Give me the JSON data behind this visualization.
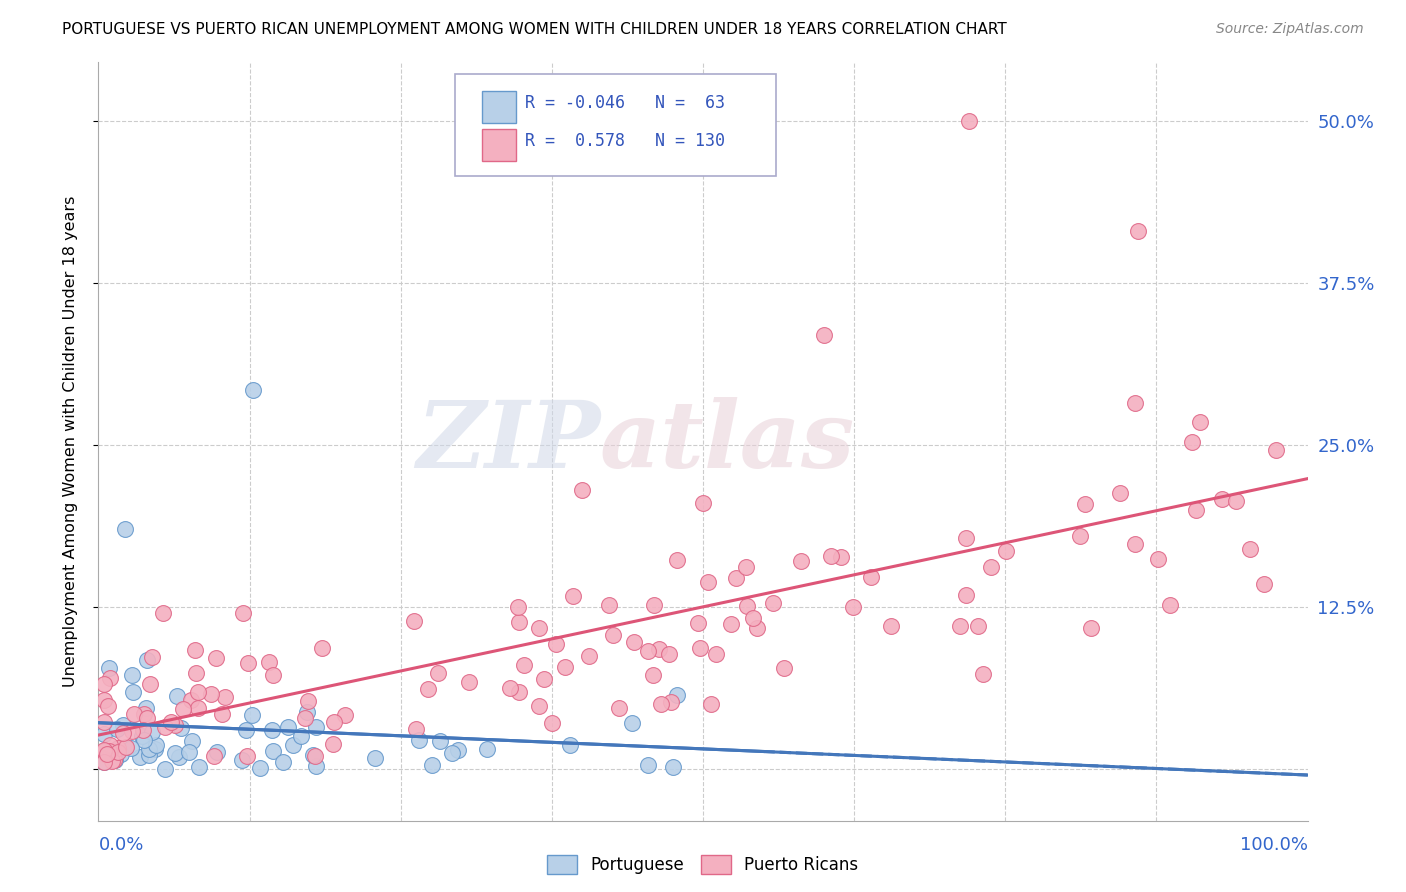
{
  "title": "PORTUGUESE VS PUERTO RICAN UNEMPLOYMENT AMONG WOMEN WITH CHILDREN UNDER 18 YEARS CORRELATION CHART",
  "source": "Source: ZipAtlas.com",
  "ylabel": "Unemployment Among Women with Children Under 18 years",
  "ytick_labels_right": [
    "",
    "12.5%",
    "25.0%",
    "37.5%",
    "50.0%"
  ],
  "ytick_values": [
    0,
    0.125,
    0.25,
    0.375,
    0.5
  ],
  "xlim": [
    0,
    1.0
  ],
  "ylim": [
    -0.04,
    0.545
  ],
  "legend_portuguese_r": "-0.046",
  "legend_portuguese_n": "63",
  "legend_puertoricans_r": "0.578",
  "legend_puertoricans_n": "130",
  "color_portuguese_fill": "#b8d0e8",
  "color_portuguese_edge": "#6699cc",
  "color_puertoricans_fill": "#f4b0c0",
  "color_puertoricans_edge": "#e06888",
  "color_line_portuguese": "#4477bb",
  "color_line_puertoricans": "#dd5577",
  "watermark_color": "#d0d8e8",
  "watermark_color2": "#e8d0d8"
}
